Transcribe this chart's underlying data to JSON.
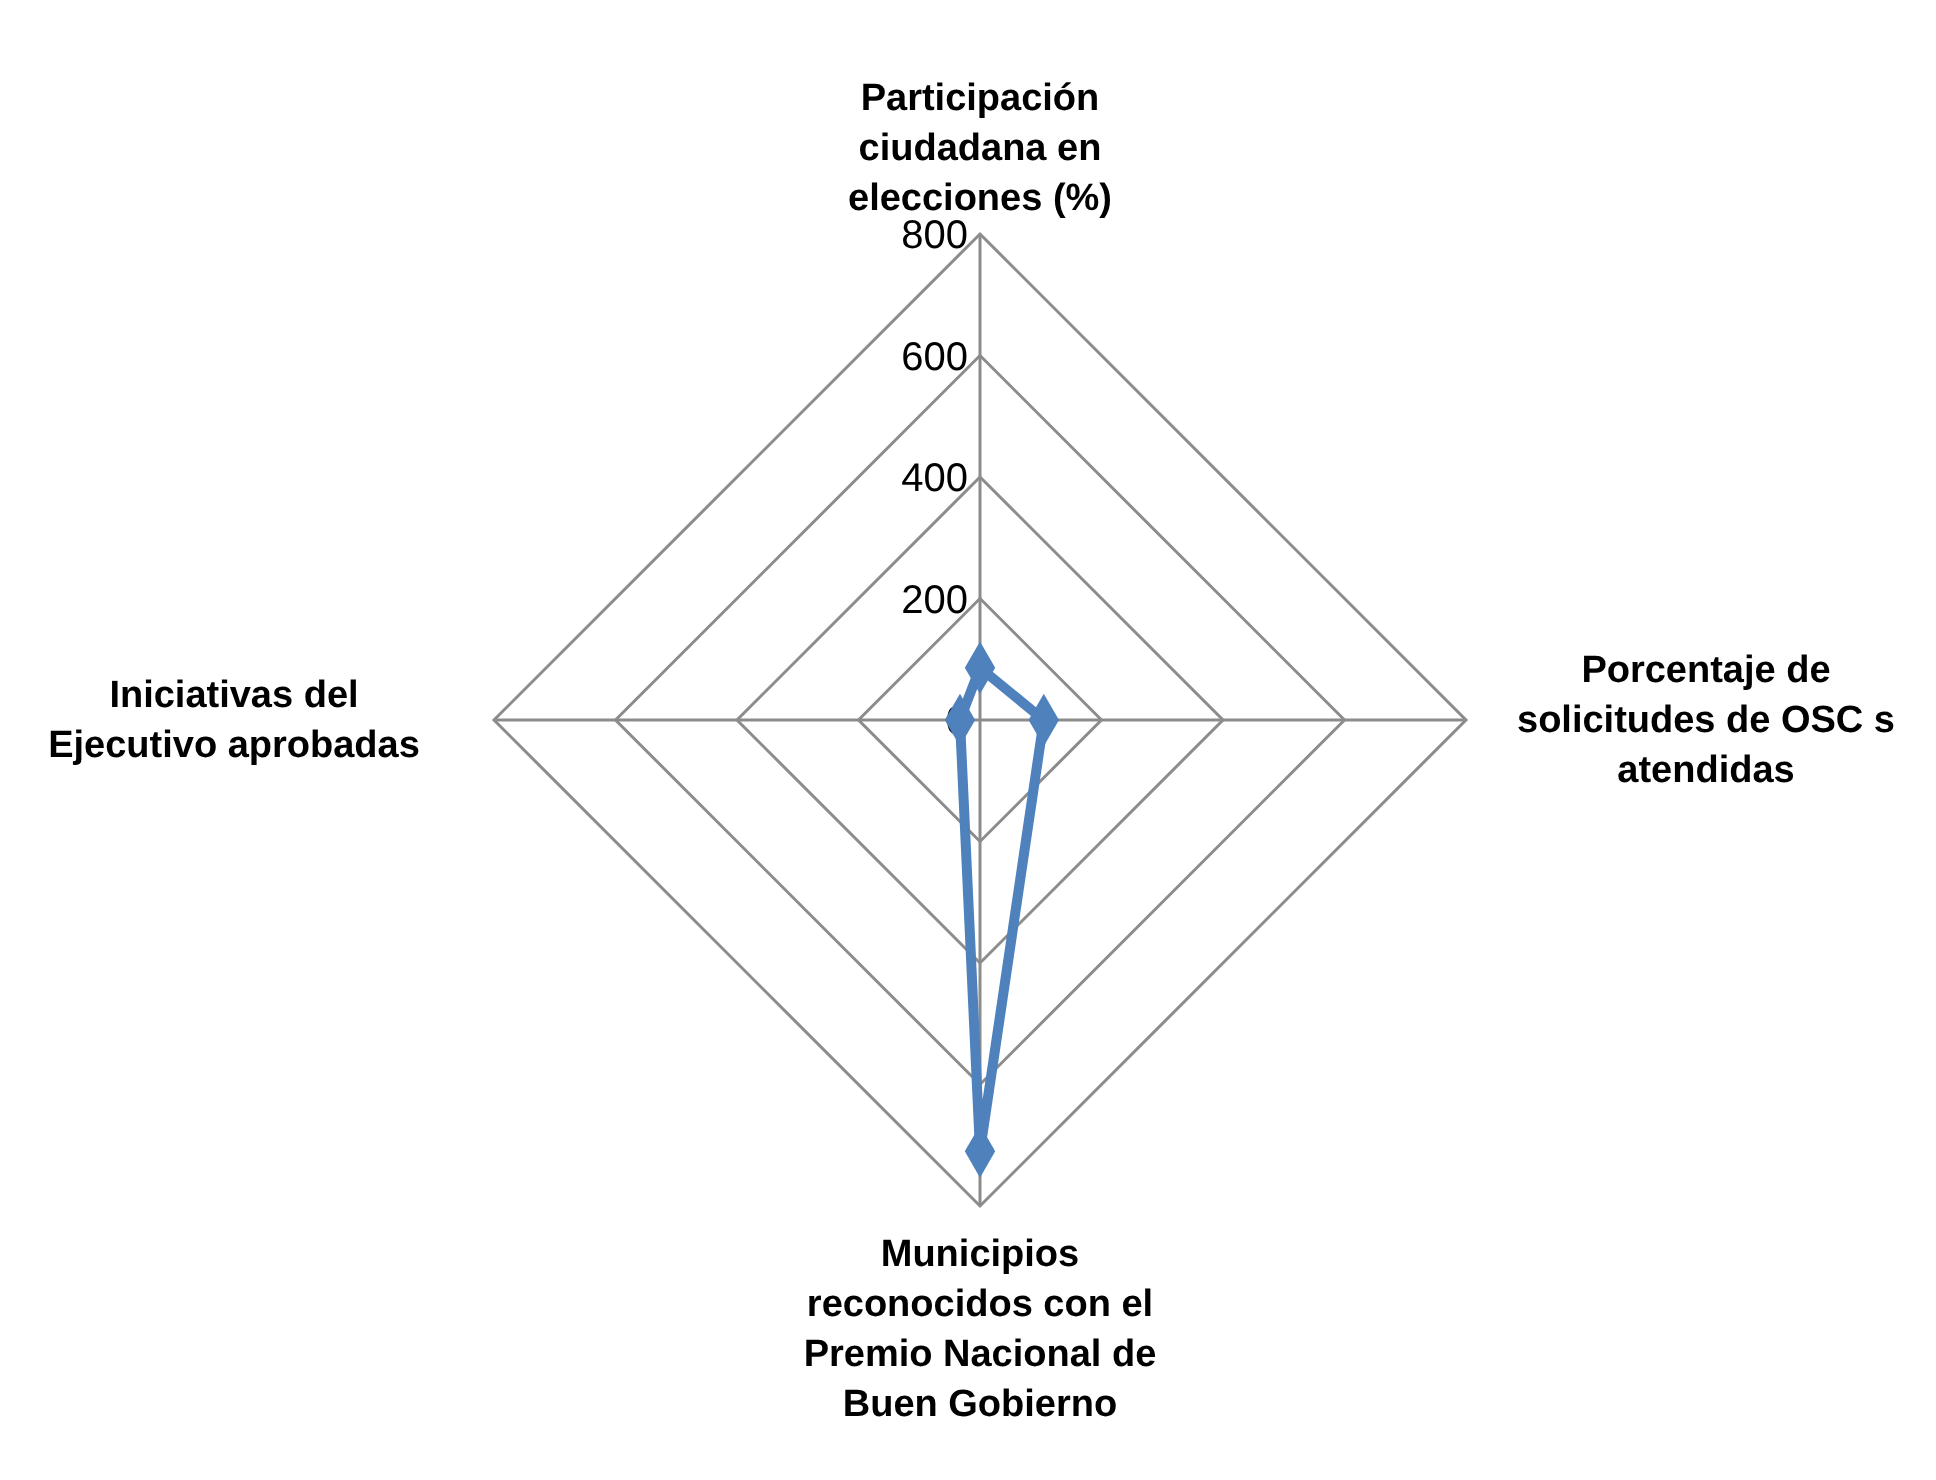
{
  "chart_data": {
    "type": "radar",
    "categories": [
      "Participación ciudadana en elecciones (%)",
      "Porcentaje de solicitudes de OSC s atendidas",
      "Municipios reconocidos con el Premio Nacional de Buen Gobierno",
      "Iniciativas del Ejecutivo aprobadas"
    ],
    "series": [
      {
        "color": "#4f81bd",
        "values": [
          86,
          105,
          710,
          33
        ]
      }
    ],
    "ylim": [
      0,
      800
    ],
    "yticks": [
      0,
      200,
      400,
      600,
      800
    ],
    "grid": true,
    "marker": "diamond"
  }
}
